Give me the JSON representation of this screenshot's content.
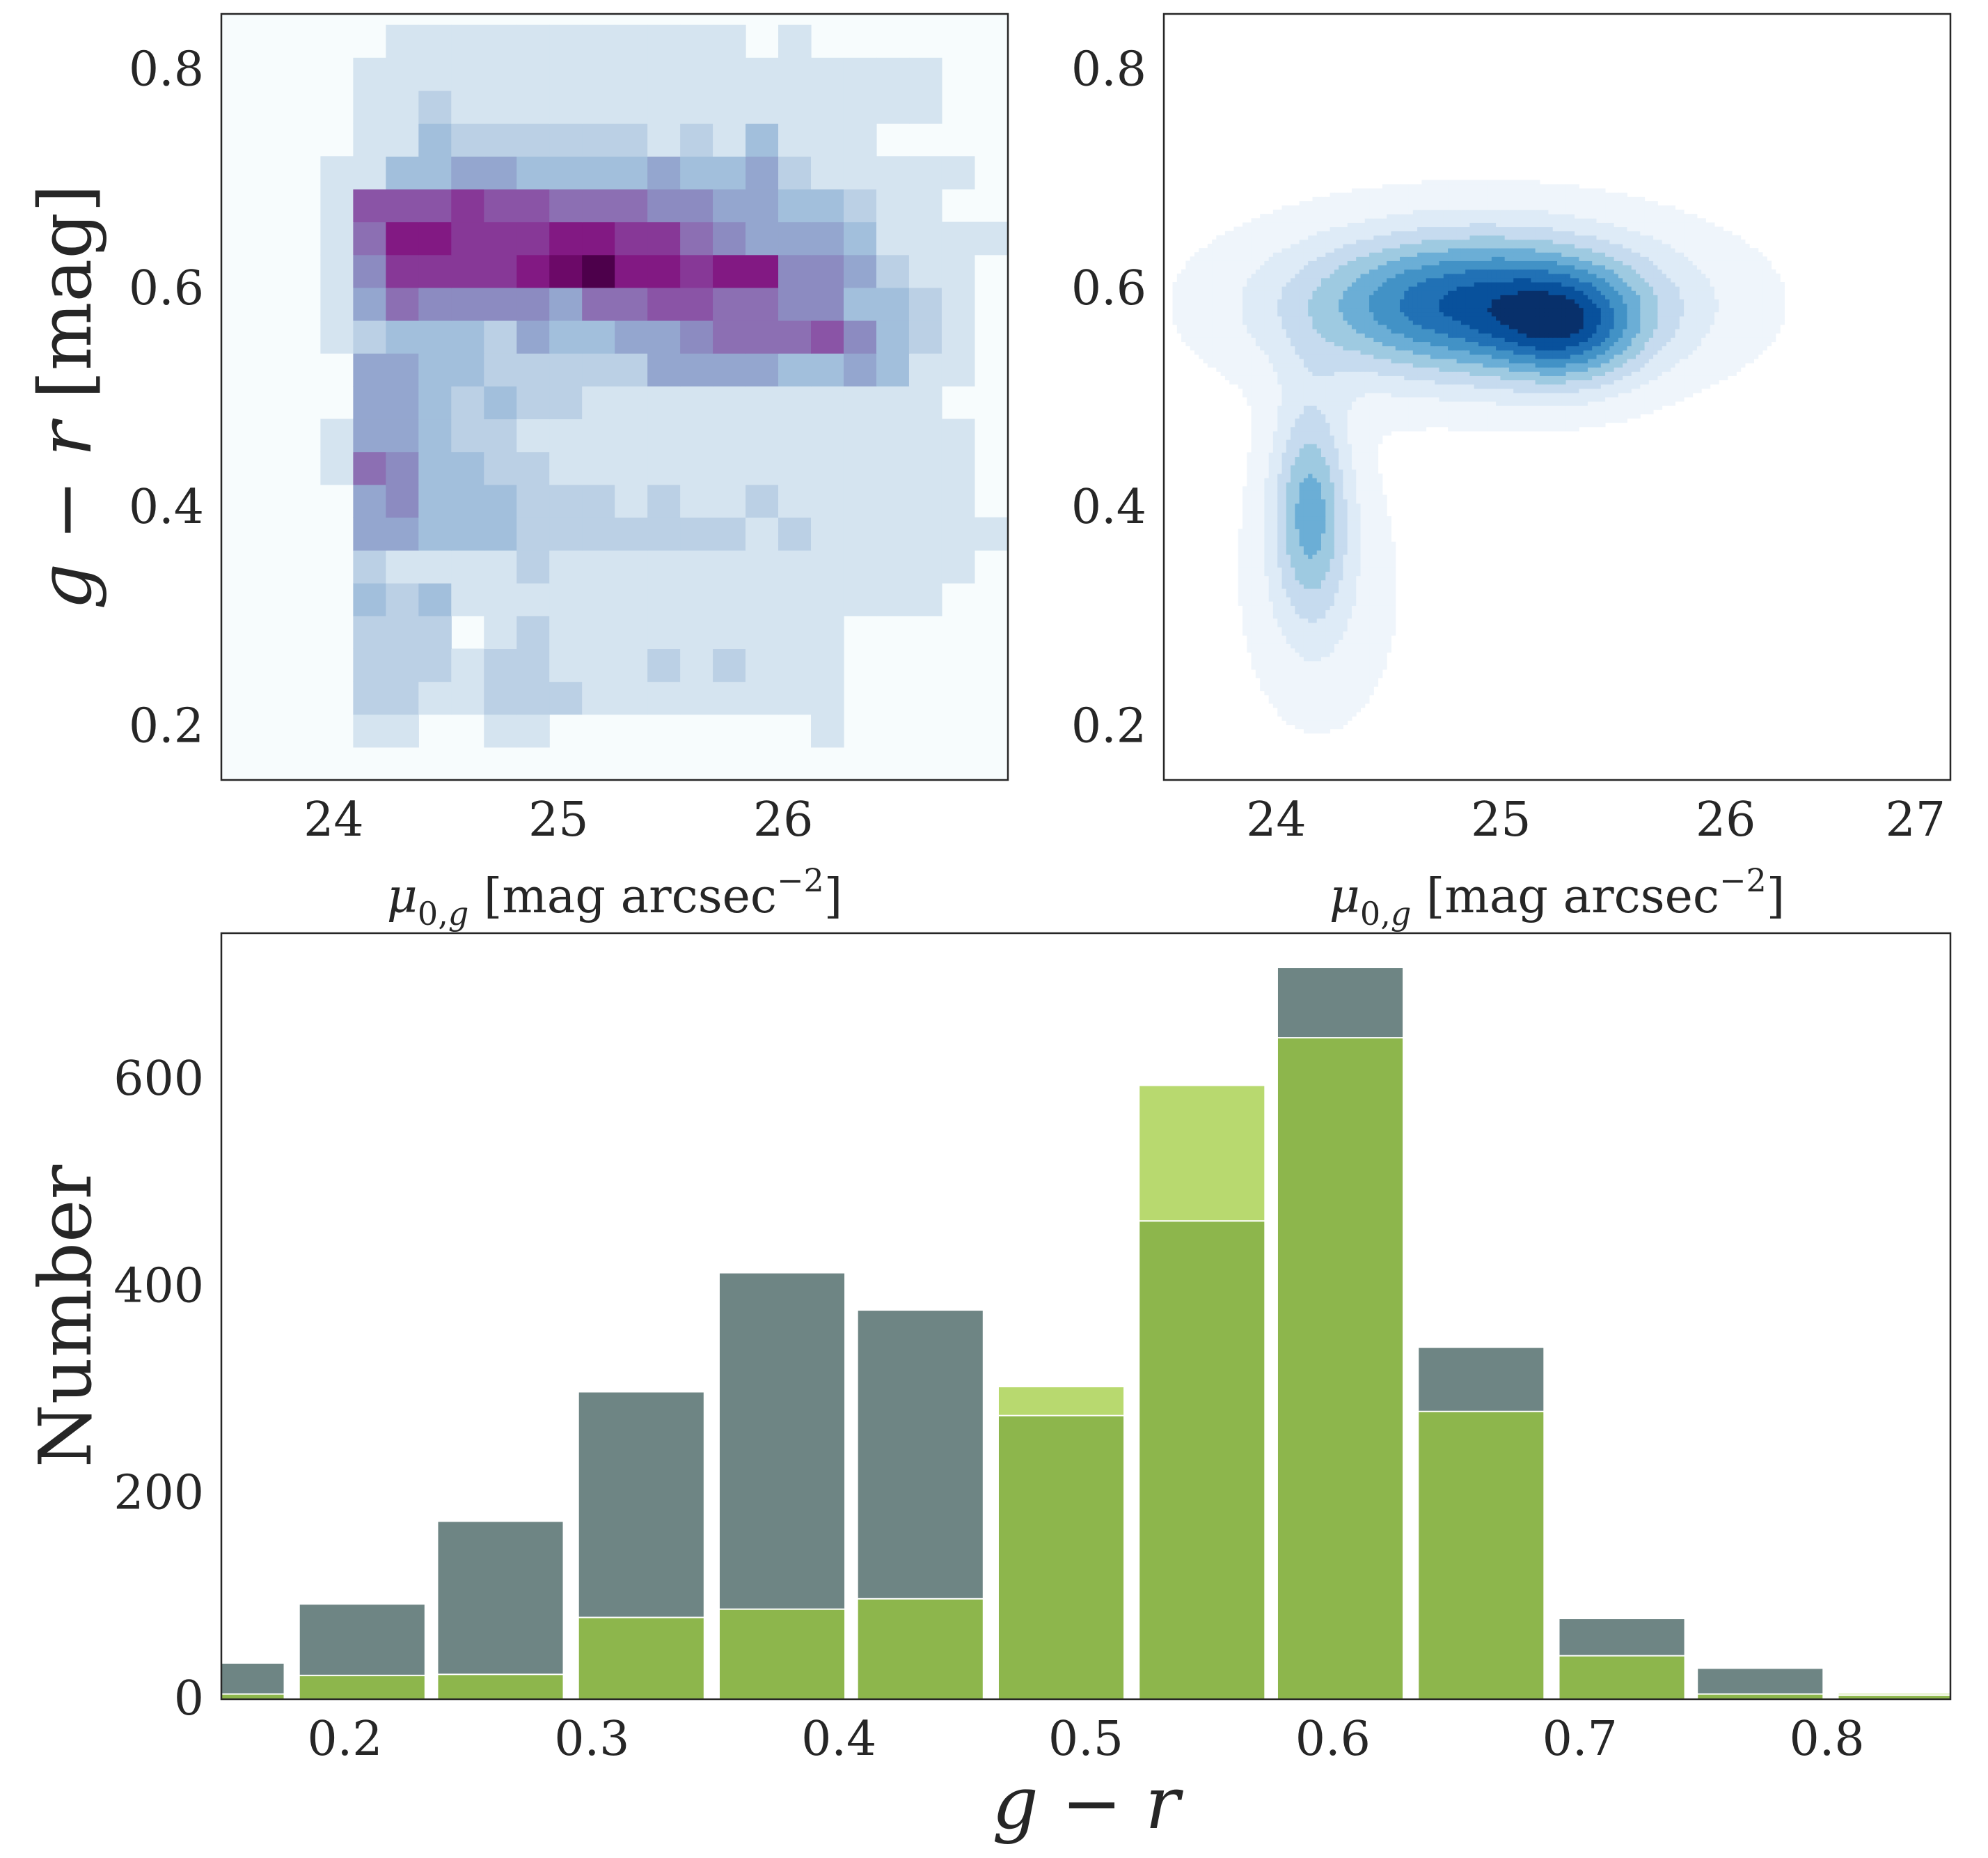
{
  "chart_data": [
    {
      "type": "heatmap",
      "panel": "top-left",
      "xlabel": "μ0,g [mag arcsec−2]",
      "ylabel": "g − r [mag]",
      "xlim": [
        23.5,
        27.0
      ],
      "ylim": [
        0.15,
        0.85
      ],
      "xticks": [
        24,
        25,
        26
      ],
      "xtick_labels": [
        "24",
        "25",
        "26"
      ],
      "yticks": [
        0.2,
        0.4,
        0.6,
        0.8
      ],
      "ytick_labels": [
        "0.2",
        "0.4",
        "0.6",
        "0.8"
      ],
      "x_edges_start": 23.65,
      "x_bin": 0.1455,
      "y_edges_start": 0.15,
      "y_bin": 0.03,
      "colormap": "BuPu",
      "grid": false,
      "rows_note": "counts per bin, row 0 = lowest g-r bin",
      "counts": [
        [
          0,
          0,
          0,
          0,
          0,
          0,
          0,
          0,
          0,
          0,
          0,
          0,
          0,
          0,
          0,
          0,
          0,
          0,
          0,
          0,
          0,
          0,
          0,
          0
        ],
        [
          0,
          0,
          0,
          1,
          1,
          0,
          0,
          1,
          1,
          0,
          0,
          0,
          0,
          0,
          0,
          0,
          0,
          1,
          0,
          0,
          0,
          0,
          0,
          0
        ],
        [
          0,
          0,
          0,
          2,
          2,
          1,
          1,
          2,
          2,
          2,
          1,
          1,
          1,
          1,
          1,
          1,
          1,
          1,
          0,
          0,
          0,
          0,
          0,
          0
        ],
        [
          0,
          0,
          0,
          2,
          2,
          2,
          1,
          2,
          2,
          1,
          1,
          1,
          2,
          1,
          2,
          1,
          1,
          1,
          0,
          0,
          0,
          0,
          0,
          0
        ],
        [
          0,
          0,
          0,
          2,
          2,
          2,
          0,
          1,
          2,
          1,
          1,
          1,
          1,
          1,
          1,
          1,
          1,
          1,
          0,
          0,
          0,
          0,
          0,
          0
        ],
        [
          0,
          0,
          0,
          3,
          2,
          3,
          1,
          1,
          1,
          1,
          1,
          1,
          1,
          1,
          1,
          1,
          1,
          1,
          1,
          1,
          1,
          0,
          0,
          0
        ],
        [
          0,
          0,
          0,
          2,
          1,
          1,
          1,
          1,
          2,
          1,
          1,
          1,
          1,
          1,
          1,
          1,
          1,
          1,
          1,
          1,
          1,
          1,
          0,
          0
        ],
        [
          0,
          0,
          0,
          4,
          4,
          3,
          3,
          3,
          2,
          2,
          2,
          2,
          2,
          2,
          2,
          1,
          2,
          1,
          1,
          1,
          1,
          1,
          1,
          0
        ],
        [
          0,
          0,
          0,
          4,
          5,
          3,
          3,
          3,
          2,
          2,
          2,
          1,
          2,
          1,
          1,
          2,
          1,
          1,
          1,
          1,
          1,
          1,
          0,
          0
        ],
        [
          0,
          0,
          1,
          6,
          5,
          3,
          3,
          2,
          2,
          1,
          1,
          1,
          1,
          1,
          1,
          1,
          1,
          1,
          1,
          1,
          1,
          1,
          0,
          0
        ],
        [
          0,
          0,
          1,
          4,
          4,
          3,
          2,
          2,
          1,
          1,
          1,
          1,
          1,
          1,
          1,
          1,
          1,
          1,
          1,
          1,
          1,
          1,
          0,
          0
        ],
        [
          0,
          0,
          0,
          4,
          4,
          3,
          2,
          3,
          2,
          2,
          1,
          1,
          1,
          1,
          1,
          1,
          1,
          1,
          1,
          1,
          1,
          0,
          0,
          0
        ],
        [
          0,
          0,
          0,
          4,
          4,
          3,
          3,
          2,
          2,
          2,
          2,
          2,
          4,
          4,
          4,
          4,
          3,
          3,
          4,
          3,
          1,
          1,
          0,
          0
        ],
        [
          0,
          0,
          1,
          2,
          3,
          3,
          3,
          2,
          4,
          3,
          3,
          4,
          4,
          5,
          6,
          6,
          6,
          7,
          5,
          3,
          2,
          1,
          0,
          0
        ],
        [
          0,
          0,
          1,
          4,
          6,
          5,
          5,
          5,
          5,
          4,
          6,
          6,
          7,
          7,
          6,
          6,
          5,
          5,
          3,
          3,
          2,
          1,
          0,
          0
        ],
        [
          0,
          0,
          1,
          5,
          8,
          8,
          8,
          8,
          9,
          10,
          11,
          9,
          9,
          8,
          9,
          9,
          5,
          5,
          4,
          2,
          1,
          1,
          0,
          0
        ],
        [
          0,
          0,
          1,
          6,
          9,
          9,
          8,
          8,
          8,
          9,
          9,
          8,
          8,
          6,
          5,
          4,
          4,
          4,
          3,
          1,
          1,
          1,
          1,
          0
        ],
        [
          0,
          0,
          1,
          7,
          7,
          7,
          8,
          7,
          7,
          6,
          6,
          6,
          5,
          5,
          4,
          4,
          3,
          3,
          2,
          1,
          1,
          0,
          0,
          0
        ],
        [
          0,
          0,
          1,
          1,
          3,
          3,
          4,
          4,
          3,
          3,
          3,
          3,
          4,
          3,
          3,
          4,
          2,
          1,
          1,
          1,
          1,
          1,
          0,
          0
        ],
        [
          0,
          0,
          0,
          1,
          1,
          3,
          2,
          2,
          2,
          2,
          2,
          2,
          1,
          2,
          1,
          3,
          1,
          1,
          1,
          0,
          0,
          0,
          0,
          0
        ],
        [
          0,
          0,
          0,
          1,
          1,
          2,
          1,
          1,
          1,
          1,
          1,
          1,
          1,
          1,
          1,
          1,
          1,
          1,
          1,
          1,
          1,
          0,
          0,
          0
        ],
        [
          0,
          0,
          0,
          1,
          1,
          1,
          1,
          1,
          1,
          1,
          1,
          1,
          1,
          1,
          1,
          1,
          1,
          1,
          1,
          1,
          1,
          0,
          0,
          0
        ],
        [
          0,
          0,
          0,
          0,
          1,
          1,
          1,
          1,
          1,
          1,
          1,
          1,
          1,
          1,
          1,
          0,
          1,
          0,
          0,
          0,
          0,
          0,
          0,
          0
        ]
      ]
    },
    {
      "type": "contour",
      "panel": "top-right",
      "xlabel": "μ0,g [mag arcsec−2]",
      "xlim": [
        23.5,
        27.0
      ],
      "ylim": [
        0.15,
        0.85
      ],
      "xticks": [
        24,
        25,
        26,
        27
      ],
      "xtick_labels": [
        "24",
        "25",
        "26",
        "27"
      ],
      "yticks": [
        0.2,
        0.4,
        0.6,
        0.8
      ],
      "ytick_labels": [
        "0.2",
        "0.4",
        "0.6",
        "0.8"
      ],
      "colormap": "Blues",
      "levels": 9,
      "components": [
        {
          "mx": 24.9,
          "my": 0.585,
          "sx": 0.58,
          "sy": 0.048,
          "w": 1.0
        },
        {
          "mx": 24.15,
          "my": 0.4,
          "sx": 0.12,
          "sy": 0.07,
          "w": 0.55
        },
        {
          "mx": 25.3,
          "my": 0.56,
          "sx": 0.22,
          "sy": 0.035,
          "w": 0.45
        },
        {
          "mx": 24.2,
          "my": 0.32,
          "sx": 0.25,
          "sy": 0.09,
          "w": 0.15
        }
      ],
      "grid": false
    },
    {
      "type": "bar",
      "panel": "bottom",
      "xlabel": "g − r",
      "ylabel": "Number",
      "xlim": [
        0.15,
        0.85
      ],
      "ylim": [
        0,
        740
      ],
      "xticks": [
        0.2,
        0.3,
        0.4,
        0.5,
        0.6,
        0.7,
        0.8
      ],
      "xtick_labels": [
        "0.2",
        "0.3",
        "0.4",
        "0.5",
        "0.6",
        "0.7",
        "0.8"
      ],
      "yticks": [
        0,
        200,
        400,
        600
      ],
      "ytick_labels": [
        "0",
        "200",
        "400",
        "600"
      ],
      "bin_centers": [
        0.15,
        0.207,
        0.263,
        0.32,
        0.377,
        0.433,
        0.49,
        0.547,
        0.603,
        0.66,
        0.717,
        0.773,
        0.83
      ],
      "bin_width": 0.0567,
      "series": [
        {
          "color": "#6e8584",
          "values": [
            35,
            92,
            172,
            297,
            412,
            376,
            0,
            0,
            707,
            340,
            78,
            30,
            0
          ]
        },
        {
          "color": "#b8d96f",
          "values": [
            0,
            0,
            0,
            0,
            0,
            0,
            302,
            593,
            0,
            0,
            0,
            0,
            6
          ]
        },
        {
          "color": "#8db64c",
          "values": [
            5,
            23,
            24,
            79,
            87,
            97,
            274,
            462,
            639,
            278,
            42,
            5,
            4
          ]
        }
      ],
      "grid": false
    }
  ]
}
